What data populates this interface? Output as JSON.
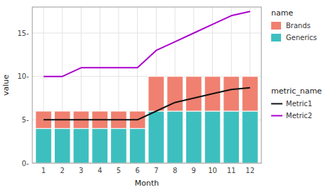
{
  "chart_data": {
    "type": "bar",
    "stacked": true,
    "xlabel": "Month",
    "ylabel": "value",
    "x": [
      1,
      2,
      3,
      4,
      5,
      6,
      7,
      8,
      9,
      10,
      11,
      12
    ],
    "xlim": [
      0.4,
      12.6
    ],
    "xticks": [
      1,
      2,
      3,
      4,
      5,
      6,
      7,
      8,
      9,
      10,
      11,
      12
    ],
    "ylim": [
      0,
      18
    ],
    "yticks": [
      {
        "value": 0,
        "label": "0-"
      },
      {
        "value": 5,
        "label": "5-"
      },
      {
        "value": 10,
        "label": "10-"
      },
      {
        "value": 15,
        "label": "15-"
      }
    ],
    "grid": true,
    "legend": "right",
    "legend_titles": [
      "name",
      "metric_name"
    ],
    "series": [
      {
        "name": "Generics",
        "type": "bar",
        "color": "#3DBFBF",
        "values": [
          4,
          4,
          4,
          4,
          4,
          4,
          6,
          6,
          6,
          6,
          6,
          6
        ]
      },
      {
        "name": "Brands",
        "type": "bar",
        "color": "#F08070",
        "values": [
          2,
          2,
          2,
          2,
          2,
          2,
          4,
          4,
          4,
          4,
          4,
          4
        ]
      },
      {
        "name": "Metric1",
        "type": "line",
        "color": "#111111",
        "values": [
          5,
          5,
          5,
          5,
          5,
          5,
          6,
          7,
          7.5,
          8,
          8.5,
          8.7
        ]
      },
      {
        "name": "Metric2",
        "type": "line",
        "color": "#AA00CC",
        "values": [
          10,
          10,
          11,
          11,
          11,
          11,
          13,
          14,
          15,
          16,
          17,
          17.5
        ]
      }
    ]
  }
}
